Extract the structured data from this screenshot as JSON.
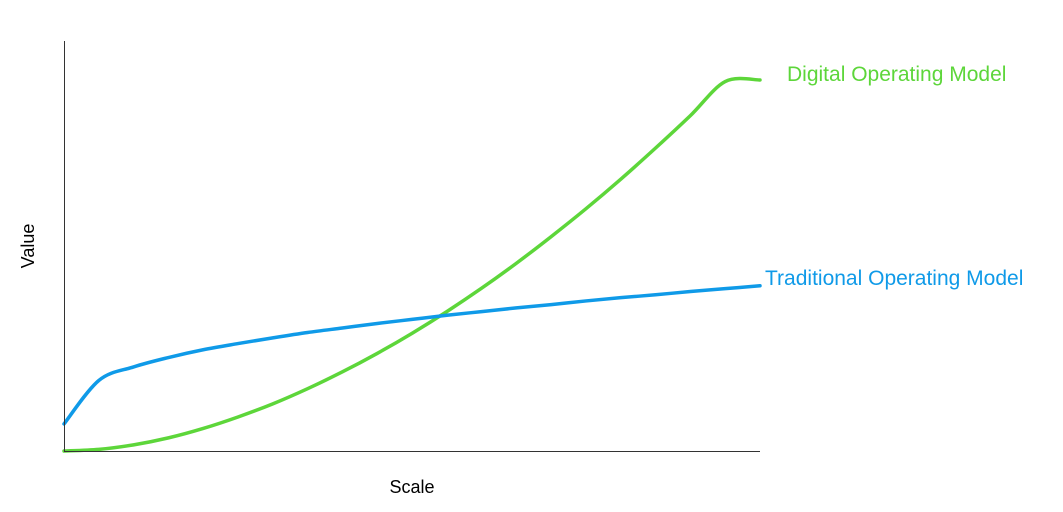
{
  "chart_data": {
    "type": "line",
    "title": "",
    "xlabel": "Scale",
    "ylabel": "Value",
    "xlim": [
      0,
      1
    ],
    "ylim": [
      0,
      1
    ],
    "grid": false,
    "legend": "inline labels at line ends",
    "x": [
      0,
      0.05,
      0.1,
      0.15,
      0.2,
      0.25,
      0.3,
      0.35,
      0.4,
      0.45,
      0.5,
      0.55,
      0.6,
      0.65,
      0.7,
      0.75,
      0.8,
      0.85,
      0.9,
      0.95,
      1.0
    ],
    "series": [
      {
        "name": "Digital Operating Model",
        "color": "#5dd63a",
        "values": [
          0.0,
          0.004,
          0.015,
          0.032,
          0.055,
          0.083,
          0.115,
          0.152,
          0.193,
          0.238,
          0.287,
          0.34,
          0.397,
          0.458,
          0.523,
          0.591,
          0.663,
          0.739,
          0.818,
          0.901,
          0.905
        ]
      },
      {
        "name": "Traditional Operating Model",
        "color": "#0f9ae8",
        "values": [
          0.066,
          0.172,
          0.205,
          0.228,
          0.247,
          0.262,
          0.276,
          0.289,
          0.3,
          0.311,
          0.321,
          0.331,
          0.34,
          0.349,
          0.357,
          0.366,
          0.374,
          0.381,
          0.389,
          0.396,
          0.403
        ]
      }
    ]
  }
}
